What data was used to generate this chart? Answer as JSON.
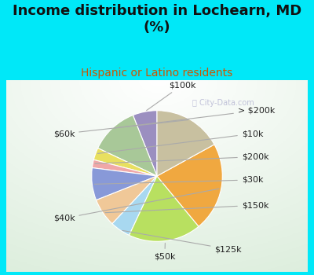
{
  "title": "Income distribution in Lochearn, MD\n(%)",
  "subtitle": "Hispanic or Latino residents",
  "slices": [
    {
      "label": "$100k",
      "value": 6,
      "color": "#9b8fc0"
    },
    {
      "label": "> $200k",
      "value": 12,
      "color": "#a8c898"
    },
    {
      "label": "$10k",
      "value": 3,
      "color": "#e8e060"
    },
    {
      "label": "$200k",
      "value": 2,
      "color": "#f0a8a8"
    },
    {
      "label": "$30k",
      "value": 8,
      "color": "#8899d8"
    },
    {
      "label": "$150k",
      "value": 7,
      "color": "#f0c898"
    },
    {
      "label": "$125k",
      "value": 5,
      "color": "#a8d8f0"
    },
    {
      "label": "$50k",
      "value": 18,
      "color": "#b8e060"
    },
    {
      "label": "$40k",
      "value": 22,
      "color": "#f0a840"
    },
    {
      "label": "$60k",
      "value": 17,
      "color": "#c8c0a0"
    }
  ],
  "bg_color": "#00e8f8",
  "chart_bg_outer": "#c8e8c8",
  "title_fontsize": 13,
  "subtitle_fontsize": 10,
  "subtitle_color": "#cc5500",
  "label_fontsize": 8,
  "watermark": "City-Data.com"
}
